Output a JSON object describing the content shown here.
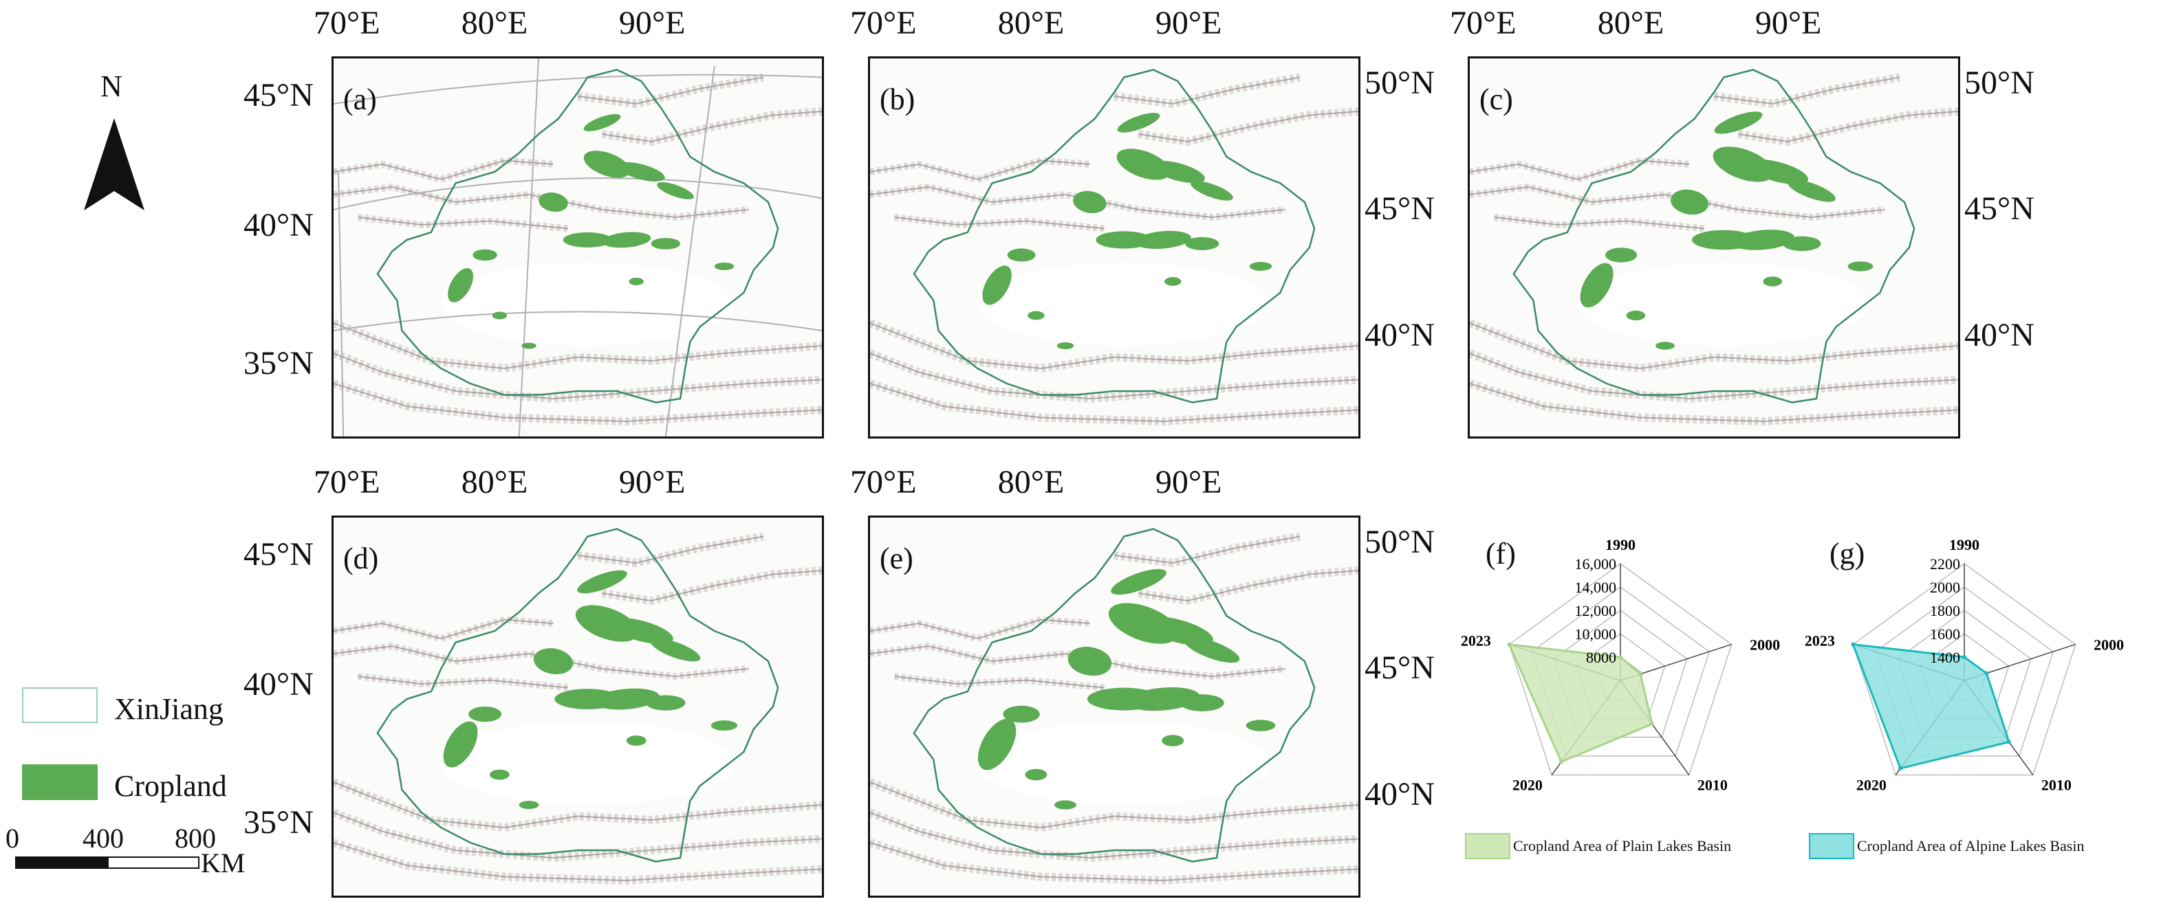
{
  "panels": [
    {
      "id": "a",
      "label": "(a)",
      "top_ticks": [
        "70°E",
        "80°E",
        "90°E"
      ],
      "left_ticks": [
        "45°N",
        "40°N",
        "35°N"
      ],
      "right_ticks": [],
      "graticule": true
    },
    {
      "id": "b",
      "label": "(b)",
      "top_ticks": [
        "70°E",
        "80°E",
        "90°E"
      ],
      "left_ticks": [],
      "right_ticks": [
        "50°N",
        "45°N",
        "40°N"
      ],
      "graticule": false
    },
    {
      "id": "c",
      "label": "(c)",
      "top_ticks": [
        "70°E",
        "80°E",
        "90°E"
      ],
      "left_ticks": [],
      "right_ticks": [
        "50°N",
        "45°N",
        "40°N"
      ],
      "graticule": false
    },
    {
      "id": "d",
      "label": "(d)",
      "top_ticks": [
        "70°E",
        "80°E",
        "90°E"
      ],
      "left_ticks": [
        "45°N",
        "40°N",
        "35°N"
      ],
      "right_ticks": [],
      "graticule": false
    },
    {
      "id": "e",
      "label": "(e)",
      "top_ticks": [
        "70°E",
        "80°E",
        "90°E"
      ],
      "left_ticks": [],
      "right_ticks": [
        "50°N",
        "45°N",
        "40°N"
      ],
      "graticule": false
    }
  ],
  "north_arrow": {
    "label": "N"
  },
  "legend": {
    "items": [
      {
        "label": "XinJiang",
        "type": "outline"
      },
      {
        "label": "Cropland",
        "type": "fill",
        "color": "#5aab52"
      }
    ]
  },
  "scale_bar": {
    "labels": [
      "0",
      "400",
      "800"
    ],
    "unit": "KM"
  },
  "colors": {
    "cropland": "#5aab52",
    "boundary": "#3a8a6a",
    "plain_fill": "#cfe8b8",
    "plain_stroke": "#a8d48a",
    "alpine_fill": "#8fe0e0",
    "alpine_stroke": "#19b9bf",
    "grid": "#b0b0b0"
  },
  "radar_charts": [
    {
      "id": "f",
      "label": "(f)",
      "axes": [
        "1990",
        "2000",
        "2010",
        "2020",
        "2023"
      ],
      "ticks": [
        "8000",
        "10,000",
        "12,000",
        "14,000",
        "16,000"
      ],
      "legend": "Cropland Area of  Plain Lakes Basin"
    },
    {
      "id": "g",
      "label": "(g)",
      "axes": [
        "1990",
        "2000",
        "2010",
        "2020",
        "2023"
      ],
      "ticks": [
        "1400",
        "1600",
        "1800",
        "2000",
        "2200"
      ],
      "legend": "Cropland Area of Alpine Lakes Basin"
    }
  ],
  "chart_data": [
    {
      "type": "radar",
      "title": "(f)",
      "categories": [
        "1990",
        "2000",
        "2010",
        "2020",
        "2023"
      ],
      "range": [
        6000,
        16000
      ],
      "series": [
        {
          "name": "Cropland Area of  Plain Lakes Basin",
          "values": [
            8000,
            7800,
            10600,
            14600,
            16000
          ]
        }
      ]
    },
    {
      "type": "radar",
      "title": "(g)",
      "categories": [
        "1990",
        "2000",
        "2010",
        "2020",
        "2023"
      ],
      "range": [
        1200,
        2200
      ],
      "series": [
        {
          "name": "Cropland Area of Alpine Lakes Basin",
          "values": [
            1400,
            1400,
            1850,
            2130,
            2200
          ]
        }
      ]
    }
  ]
}
